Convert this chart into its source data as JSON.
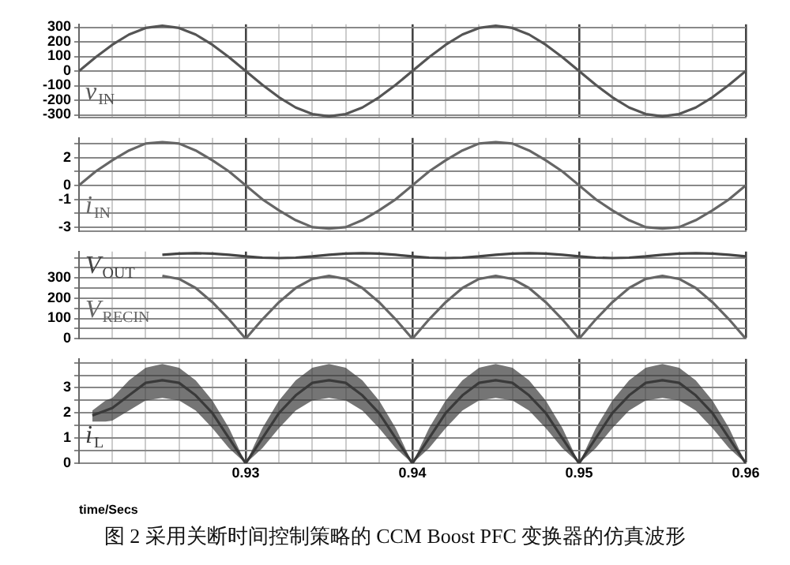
{
  "chart_data": [
    {
      "type": "line",
      "marker": "none",
      "grid": true,
      "tick_labels": "y",
      "xlim": [
        0.92,
        0.96
      ],
      "xticks": [
        {
          "value": 0.92,
          "label": null
        },
        {
          "value": 0.922,
          "label": null
        },
        {
          "value": 0.924,
          "label": null
        },
        {
          "value": 0.926,
          "label": null
        },
        {
          "value": 0.928,
          "label": null
        },
        0.93,
        {
          "value": 0.932,
          "label": null
        },
        {
          "value": 0.934,
          "label": null
        },
        {
          "value": 0.936,
          "label": null
        },
        {
          "value": 0.938,
          "label": null
        },
        0.94,
        {
          "value": 0.942,
          "label": null
        },
        {
          "value": 0.944,
          "label": null
        },
        {
          "value": 0.946,
          "label": null
        },
        {
          "value": 0.948,
          "label": null
        },
        0.95,
        {
          "value": 0.952,
          "label": null
        },
        {
          "value": 0.954,
          "label": null
        },
        {
          "value": 0.956,
          "label": null
        },
        {
          "value": 0.958,
          "label": null
        },
        0.96
      ],
      "ylim": [
        -320,
        320
      ],
      "yticks": [
        -300,
        -200,
        -100,
        0,
        100,
        200,
        300
      ],
      "x": [
        0.92,
        0.921,
        0.922,
        0.923,
        0.924,
        0.925,
        0.926,
        0.927,
        0.928,
        0.929,
        0.93,
        0.931,
        0.932,
        0.933,
        0.934,
        0.935,
        0.936,
        0.937,
        0.938,
        0.939,
        0.94,
        0.941,
        0.942,
        0.943,
        0.944,
        0.945,
        0.946,
        0.947,
        0.948,
        0.949,
        0.95,
        0.951,
        0.952,
        0.953,
        0.954,
        0.955,
        0.956,
        0.957,
        0.958,
        0.959,
        0.96
      ],
      "series": [
        {
          "name": "v$_{IN}$",
          "color": "#555555",
          "values": [
            0,
            95,
            180,
            250,
            295,
            310,
            295,
            250,
            180,
            95,
            0,
            -95,
            -180,
            -250,
            -295,
            -310,
            -295,
            -250,
            -180,
            -95,
            0,
            95,
            180,
            250,
            295,
            310,
            295,
            250,
            180,
            95,
            0,
            -95,
            -180,
            -250,
            -295,
            -310,
            -295,
            -250,
            -180,
            -95,
            0
          ]
        }
      ]
    },
    {
      "type": "line",
      "marker": "none",
      "grid": true,
      "tick_labels": "y",
      "xlim": [
        0.92,
        0.96
      ],
      "xticks": [
        {
          "value": 0.92,
          "label": null
        },
        {
          "value": 0.922,
          "label": null
        },
        {
          "value": 0.924,
          "label": null
        },
        {
          "value": 0.926,
          "label": null
        },
        {
          "value": 0.928,
          "label": null
        },
        0.93,
        {
          "value": 0.932,
          "label": null
        },
        {
          "value": 0.934,
          "label": null
        },
        {
          "value": 0.936,
          "label": null
        },
        {
          "value": 0.938,
          "label": null
        },
        0.94,
        {
          "value": 0.942,
          "label": null
        },
        {
          "value": 0.944,
          "label": null
        },
        {
          "value": 0.946,
          "label": null
        },
        {
          "value": 0.948,
          "label": null
        },
        0.95,
        {
          "value": 0.952,
          "label": null
        },
        {
          "value": 0.954,
          "label": null
        },
        {
          "value": 0.956,
          "label": null
        },
        {
          "value": 0.958,
          "label": null
        },
        0.96
      ],
      "ylim": [
        -3.3,
        3.4
      ],
      "yticks": [
        -3,
        {
          "value": -2,
          "label": null
        },
        -1,
        0,
        {
          "value": 1,
          "label": null
        },
        2,
        {
          "value": 3,
          "label": null
        }
      ],
      "x": [
        0.92,
        0.921,
        0.922,
        0.923,
        0.924,
        0.925,
        0.926,
        0.927,
        0.928,
        0.929,
        0.93,
        0.931,
        0.932,
        0.933,
        0.934,
        0.935,
        0.936,
        0.937,
        0.938,
        0.939,
        0.94,
        0.941,
        0.942,
        0.943,
        0.944,
        0.945,
        0.946,
        0.947,
        0.948,
        0.949,
        0.95,
        0.951,
        0.952,
        0.953,
        0.954,
        0.955,
        0.956,
        0.957,
        0.958,
        0.959,
        0.96
      ],
      "series": [
        {
          "name": "i$_{IN}$",
          "color": "#666666",
          "values": [
            0,
            1.0,
            1.8,
            2.5,
            3.0,
            3.1,
            3.0,
            2.5,
            1.8,
            1.0,
            0,
            -1.0,
            -1.8,
            -2.5,
            -3.0,
            -3.1,
            -3.0,
            -2.5,
            -1.8,
            -1.0,
            0,
            1.0,
            1.8,
            2.5,
            3.0,
            3.1,
            3.0,
            2.5,
            1.8,
            1.0,
            0,
            -1.0,
            -1.8,
            -2.5,
            -3.0,
            -3.1,
            -3.0,
            -2.5,
            -1.8,
            -1.0,
            0
          ]
        }
      ]
    },
    {
      "type": "line",
      "marker": "none",
      "grid": true,
      "tick_labels": "y",
      "xlim": [
        0.92,
        0.96
      ],
      "xticks": [
        {
          "value": 0.92,
          "label": null
        },
        {
          "value": 0.922,
          "label": null
        },
        {
          "value": 0.924,
          "label": null
        },
        {
          "value": 0.926,
          "label": null
        },
        {
          "value": 0.928,
          "label": null
        },
        0.93,
        {
          "value": 0.932,
          "label": null
        },
        {
          "value": 0.934,
          "label": null
        },
        {
          "value": 0.936,
          "label": null
        },
        {
          "value": 0.938,
          "label": null
        },
        0.94,
        {
          "value": 0.942,
          "label": null
        },
        {
          "value": 0.944,
          "label": null
        },
        {
          "value": 0.946,
          "label": null
        },
        {
          "value": 0.948,
          "label": null
        },
        0.95,
        {
          "value": 0.952,
          "label": null
        },
        {
          "value": 0.954,
          "label": null
        },
        {
          "value": 0.956,
          "label": null
        },
        {
          "value": 0.958,
          "label": null
        },
        0.96
      ],
      "ylim": [
        0,
        430
      ],
      "yticks": [
        0,
        {
          "value": 50,
          "label": null
        },
        100,
        {
          "value": 150,
          "label": null
        },
        200,
        {
          "value": 250,
          "label": null
        },
        300,
        {
          "value": 350,
          "label": null
        },
        {
          "value": 400,
          "label": null
        }
      ],
      "series": [
        {
          "name": "V$_{OUT}$",
          "color": "#444444",
          "x": [
            0.925,
            0.926,
            0.927,
            0.928,
            0.929,
            0.93,
            0.931,
            0.932,
            0.933,
            0.934,
            0.935,
            0.936,
            0.937,
            0.938,
            0.939,
            0.94,
            0.941,
            0.942,
            0.943,
            0.944,
            0.945,
            0.946,
            0.947,
            0.948,
            0.949,
            0.95,
            0.951,
            0.952,
            0.953,
            0.954,
            0.955,
            0.956,
            0.957,
            0.958,
            0.959,
            0.96
          ],
          "values": [
            414,
            420,
            422,
            420,
            414,
            406,
            400,
            398,
            400,
            406,
            414,
            420,
            422,
            420,
            414,
            406,
            400,
            398,
            400,
            406,
            414,
            420,
            422,
            420,
            414,
            406,
            400,
            398,
            400,
            406,
            414,
            420,
            422,
            420,
            414,
            406
          ]
        },
        {
          "name": "V$_{RECIN}$",
          "color": "#666666",
          "x": [
            0.925,
            0.926,
            0.927,
            0.928,
            0.929,
            0.93,
            0.931,
            0.932,
            0.933,
            0.934,
            0.935,
            0.936,
            0.937,
            0.938,
            0.939,
            0.94,
            0.941,
            0.942,
            0.943,
            0.944,
            0.945,
            0.946,
            0.947,
            0.948,
            0.949,
            0.95,
            0.951,
            0.952,
            0.953,
            0.954,
            0.955,
            0.956,
            0.957,
            0.958,
            0.959,
            0.96
          ],
          "values": [
            310,
            295,
            250,
            180,
            95,
            0,
            95,
            180,
            250,
            295,
            310,
            295,
            250,
            180,
            95,
            0,
            95,
            180,
            250,
            295,
            310,
            295,
            250,
            180,
            95,
            0,
            95,
            180,
            250,
            295,
            310,
            295,
            250,
            180,
            95,
            0
          ]
        }
      ]
    },
    {
      "type": "line",
      "marker": "none",
      "grid": true,
      "xlabel": "time/Secs",
      "annotations": [
        "图 2 采用关断时间控制策略的 CCM Boost PFC 变换器的仿真波形"
      ],
      "xlim": [
        0.92,
        0.96
      ],
      "xticks": [
        {
          "value": 0.92,
          "label": null
        },
        {
          "value": 0.922,
          "label": null
        },
        {
          "value": 0.924,
          "label": null
        },
        {
          "value": 0.926,
          "label": null
        },
        {
          "value": 0.928,
          "label": null
        },
        0.93,
        {
          "value": 0.932,
          "label": null
        },
        {
          "value": 0.934,
          "label": null
        },
        {
          "value": 0.936,
          "label": null
        },
        {
          "value": 0.938,
          "label": null
        },
        0.94,
        {
          "value": 0.942,
          "label": null
        },
        {
          "value": 0.944,
          "label": null
        },
        {
          "value": 0.946,
          "label": null
        },
        {
          "value": 0.948,
          "label": null
        },
        0.95,
        {
          "value": 0.952,
          "label": null
        },
        {
          "value": 0.954,
          "label": null
        },
        {
          "value": 0.956,
          "label": null
        },
        {
          "value": 0.958,
          "label": null
        },
        0.96
      ],
      "ylim": [
        0,
        4.15
      ],
      "yticks": [
        0,
        {
          "value": 0.5,
          "label": null
        },
        1,
        {
          "value": 1.5,
          "label": null
        },
        2,
        {
          "value": 2.5,
          "label": null
        },
        3,
        {
          "value": 3.5,
          "label": null
        },
        {
          "value": 4,
          "label": null
        }
      ],
      "series": [
        {
          "name": "i$_{L}$",
          "color": "#3a3a3a",
          "x": [
            0.9208,
            0.9216,
            0.922,
            0.923,
            0.924,
            0.925,
            0.926,
            0.927,
            0.928,
            0.929,
            0.93,
            0.931,
            0.932,
            0.933,
            0.934,
            0.935,
            0.936,
            0.937,
            0.938,
            0.939,
            0.94,
            0.941,
            0.942,
            0.943,
            0.944,
            0.945,
            0.946,
            0.947,
            0.948,
            0.949,
            0.95,
            0.951,
            0.952,
            0.953,
            0.954,
            0.955,
            0.956,
            0.957,
            0.958,
            0.959,
            0.96
          ],
          "lower": [
            1.66,
            1.66,
            1.7,
            2.1,
            2.5,
            2.6,
            2.5,
            2.1,
            1.4,
            0.6,
            0,
            0.6,
            1.4,
            2.1,
            2.5,
            2.6,
            2.5,
            2.1,
            1.4,
            0.6,
            0,
            0.6,
            1.4,
            2.1,
            2.5,
            2.6,
            2.5,
            2.1,
            1.4,
            0.6,
            0,
            0.6,
            1.4,
            2.1,
            2.5,
            2.6,
            2.5,
            2.1,
            1.4,
            0.6,
            0
          ],
          "upper": [
            2.1,
            2.5,
            2.6,
            3.3,
            3.8,
            3.95,
            3.8,
            3.3,
            2.5,
            1.4,
            0,
            1.4,
            2.5,
            3.3,
            3.8,
            3.95,
            3.8,
            3.3,
            2.5,
            1.4,
            0,
            1.4,
            2.5,
            3.3,
            3.8,
            3.95,
            3.8,
            3.3,
            2.5,
            1.4,
            0,
            1.4,
            2.5,
            3.3,
            3.8,
            3.95,
            3.8,
            3.3,
            2.5,
            1.4,
            0
          ],
          "values": [
            1.9,
            2.1,
            2.2,
            2.7,
            3.2,
            3.3,
            3.2,
            2.7,
            2.0,
            1.0,
            0,
            1.0,
            2.0,
            2.7,
            3.2,
            3.3,
            3.2,
            2.7,
            2.0,
            1.0,
            0,
            1.0,
            2.0,
            2.7,
            3.2,
            3.3,
            3.2,
            2.7,
            2.0,
            1.0,
            0,
            1.0,
            2.0,
            2.7,
            3.2,
            3.3,
            3.2,
            2.7,
            2.0,
            1.0,
            0
          ]
        }
      ]
    }
  ]
}
